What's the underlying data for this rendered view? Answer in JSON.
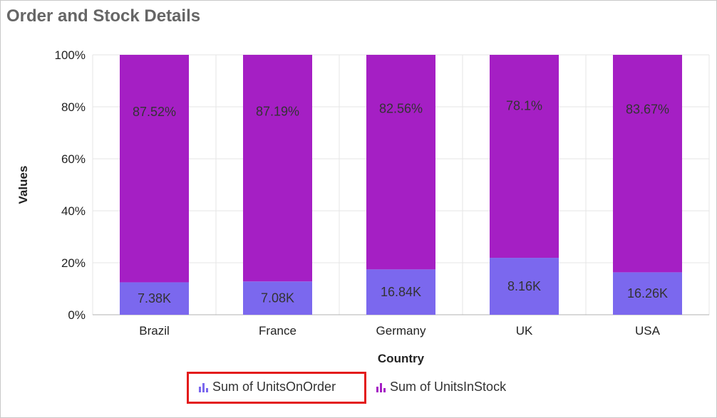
{
  "title": "Order and Stock Details",
  "colors": {
    "units_on_order": "#7b68ee",
    "units_in_stock": "#a51fc4",
    "grid": "#e6e6e6",
    "highlight": "#e31b1b"
  },
  "legend": {
    "items": [
      {
        "label": "Sum of UnitsOnOrder",
        "color": "#7b68ee",
        "icon": "bar-chart-icon"
      },
      {
        "label": "Sum of UnitsInStock",
        "color": "#a51fc4",
        "icon": "bar-chart-icon"
      }
    ]
  },
  "chart_data": {
    "type": "bar",
    "stacking": "100%",
    "title": "Order and Stock Details",
    "xlabel": "Country",
    "ylabel": "Values",
    "categories": [
      "Brazil",
      "France",
      "Germany",
      "UK",
      "USA"
    ],
    "ylim": [
      0,
      100
    ],
    "yticks": [
      "0%",
      "20%",
      "40%",
      "60%",
      "80%",
      "100%"
    ],
    "grid": true,
    "legend_position": "bottom",
    "series": [
      {
        "name": "Sum of UnitsOnOrder",
        "color": "#7b68ee",
        "percent": [
          12.48,
          12.81,
          17.44,
          21.9,
          16.33
        ],
        "labels": [
          "7.38K",
          "7.08K",
          "16.84K",
          "8.16K",
          "16.26K"
        ]
      },
      {
        "name": "Sum of UnitsInStock",
        "color": "#a51fc4",
        "percent": [
          87.52,
          87.19,
          82.56,
          78.1,
          83.67
        ],
        "labels": [
          "87.52%",
          "87.19%",
          "82.56%",
          "78.1%",
          "83.67%"
        ]
      }
    ]
  }
}
